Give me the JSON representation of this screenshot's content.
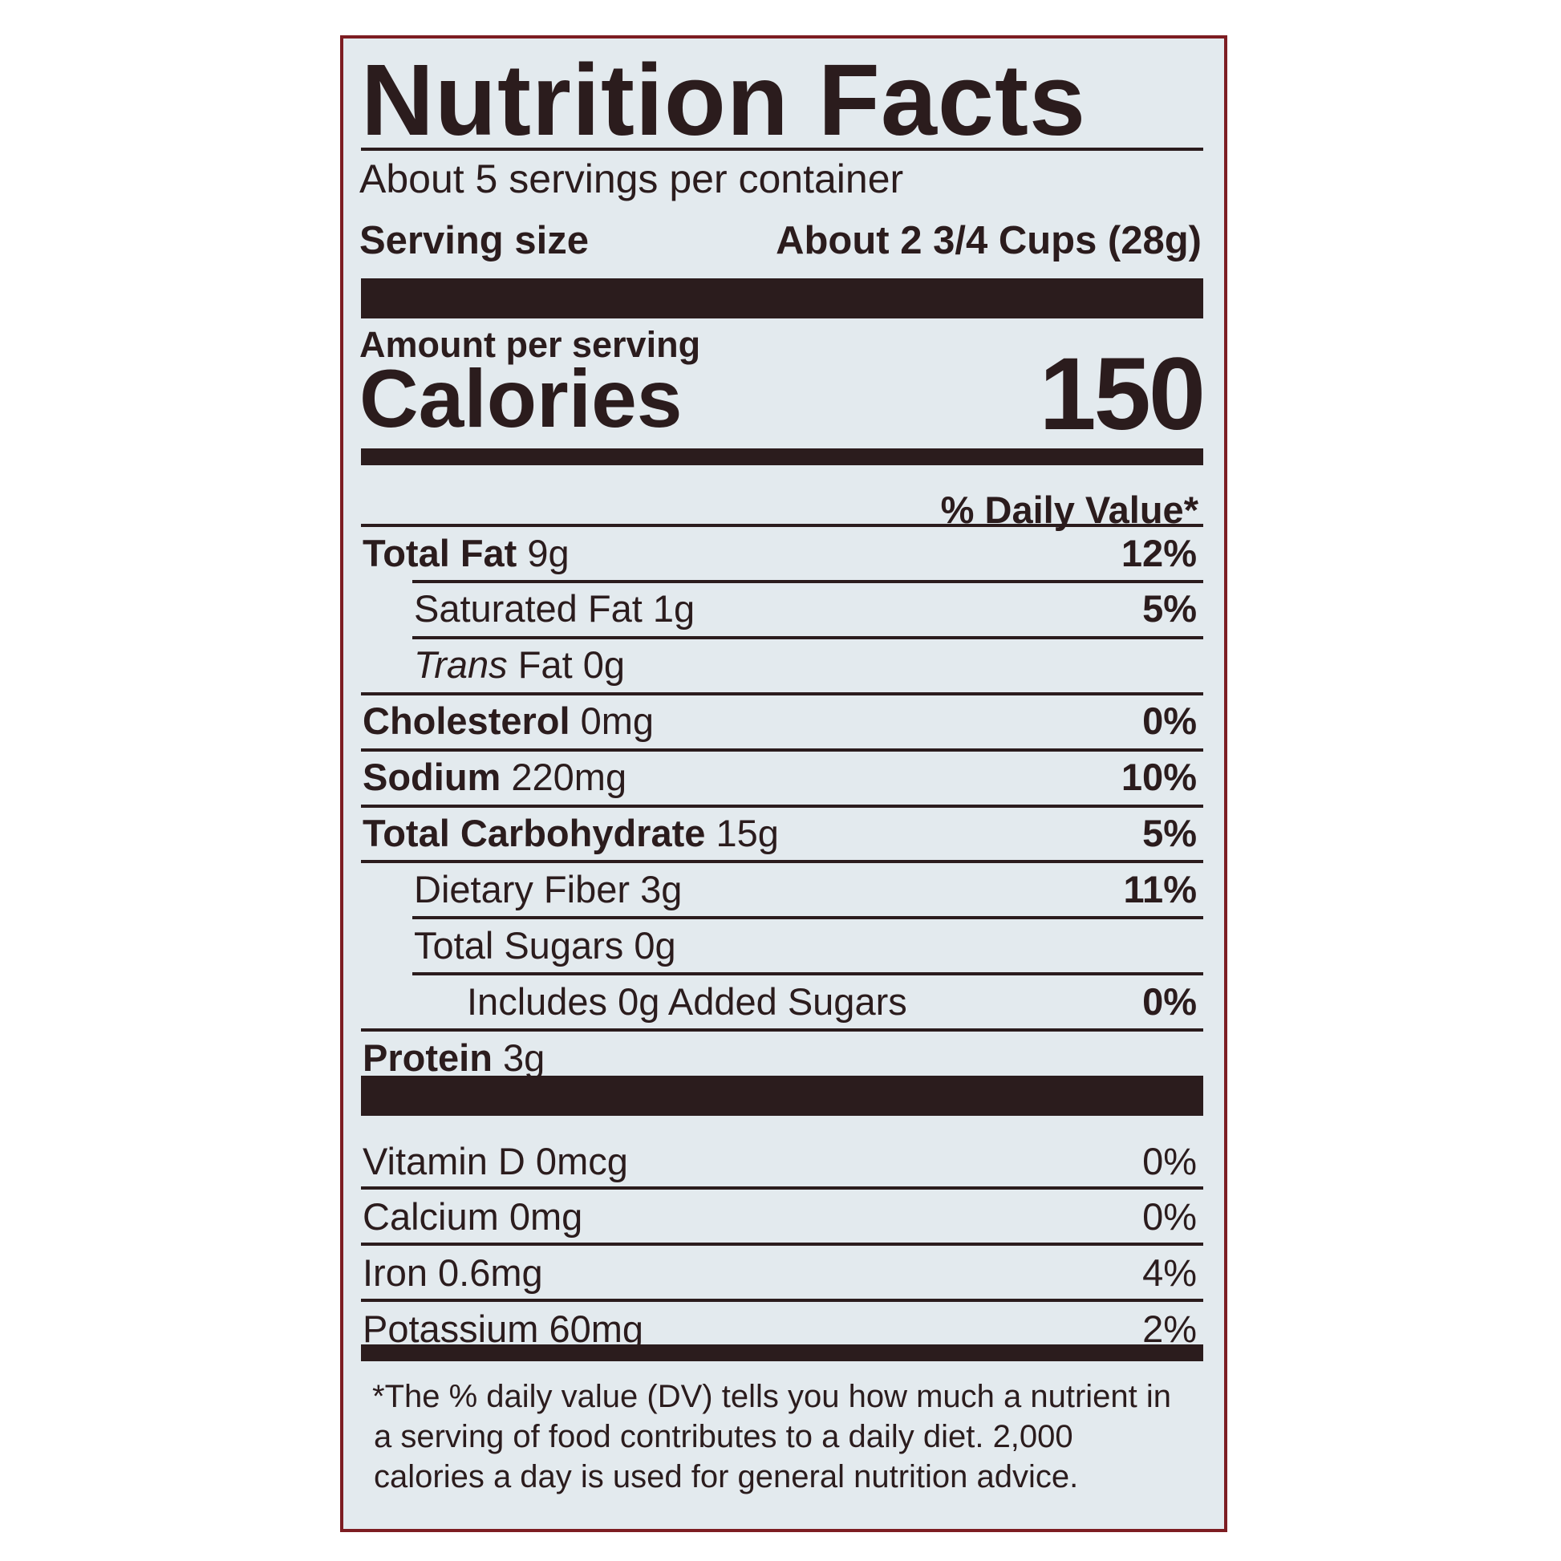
{
  "title": "Nutrition Facts",
  "servings_per_container": "About 5 servings per container",
  "serving_size_label": "Serving size",
  "serving_size_value": "About 2 3/4 Cups (28g)",
  "amount_per_serving": "Amount per serving",
  "calories_label": "Calories",
  "calories_value": "150",
  "daily_value_header": "% Daily Value*",
  "nutrients": [
    {
      "name": "Total Fat",
      "amount": "9g",
      "dv": "12%"
    },
    {
      "name": "Saturated Fat",
      "amount": "1g",
      "dv": "5%"
    },
    {
      "name": "Trans",
      "name_rest": "Fat",
      "amount": "0g",
      "dv": ""
    },
    {
      "name": "Cholesterol",
      "amount": "0mg",
      "dv": "0%"
    },
    {
      "name": "Sodium",
      "amount": "220mg",
      "dv": "10%"
    },
    {
      "name": "Total Carbohydrate",
      "amount": "15g",
      "dv": "5%"
    },
    {
      "name": "Dietary Fiber",
      "amount": "3g",
      "dv": "11%"
    },
    {
      "name": "Total Sugars",
      "amount": "0g",
      "dv": ""
    },
    {
      "name": "Includes 0g Added Sugars",
      "amount": "",
      "dv": "0%"
    },
    {
      "name": "Protein",
      "amount": "3g",
      "dv": ""
    }
  ],
  "vitamins": [
    {
      "text": "Vitamin D 0mcg",
      "dv": "0%"
    },
    {
      "text": "Calcium 0mg",
      "dv": "0%"
    },
    {
      "text": "Iron 0.6mg",
      "dv": "4%"
    },
    {
      "text": "Potassium 60mg",
      "dv": "2%"
    }
  ],
  "footnote": "*The % daily value (DV) tells you how much a nutrient in a serving of food contributes to a daily diet. 2,000 calories a day is used for general nutrition advice.",
  "colors": {
    "background": "#e3eaee",
    "ink": "#2b1c1d",
    "border": "#7d1d22"
  }
}
